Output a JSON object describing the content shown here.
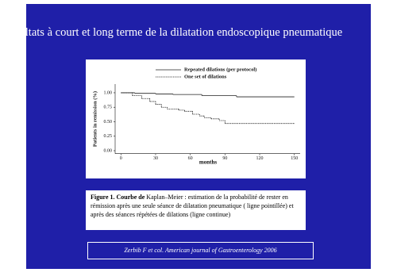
{
  "title": "Résultats à court et long terme de la dilatation endoscopique pneumatique",
  "chart_data": {
    "type": "step",
    "xlabel": "months",
    "ylabel": "Patients in remission (%)",
    "xlim": [
      -5,
      155
    ],
    "xticks": [
      0,
      30,
      60,
      90,
      120,
      150
    ],
    "ylim": [
      -0.05,
      1.15
    ],
    "yticks": [
      {
        "value": 0,
        "label": "0.00"
      },
      {
        "value": 0.25,
        "label": "0.25"
      },
      {
        "value": 0.5,
        "label": "0.50"
      },
      {
        "value": 0.75,
        "label": "0.75"
      },
      {
        "value": 1,
        "label": "1.00"
      }
    ],
    "series": [
      {
        "name": "Repeated dilations (per protocol)",
        "color": "#222222",
        "dash": "none",
        "x": [
          0,
          12,
          30,
          45,
          70,
          100,
          150
        ],
        "values": [
          1.0,
          0.99,
          0.98,
          0.97,
          0.95,
          0.93,
          0.93
        ]
      },
      {
        "name": "One set of dilations",
        "color": "#111111",
        "dash": "1.2 1",
        "x": [
          0,
          10,
          18,
          25,
          30,
          35,
          40,
          50,
          55,
          62,
          68,
          72,
          78,
          85,
          90,
          150
        ],
        "values": [
          1.0,
          0.95,
          0.9,
          0.85,
          0.8,
          0.75,
          0.72,
          0.7,
          0.68,
          0.63,
          0.6,
          0.57,
          0.55,
          0.52,
          0.47,
          0.47
        ]
      }
    ]
  },
  "caption": {
    "bold": "Figure 1. Courbe de",
    "text": "Kaplan–Meier : estimation de la probabilité de rester en rémission après une seule séance de dilatation pneumatique ( ligne pointillée) et après des séances répétées de dilations (ligne continue)"
  },
  "citation": "Zerbib F et col. American journal of Gastroenterology 2006"
}
